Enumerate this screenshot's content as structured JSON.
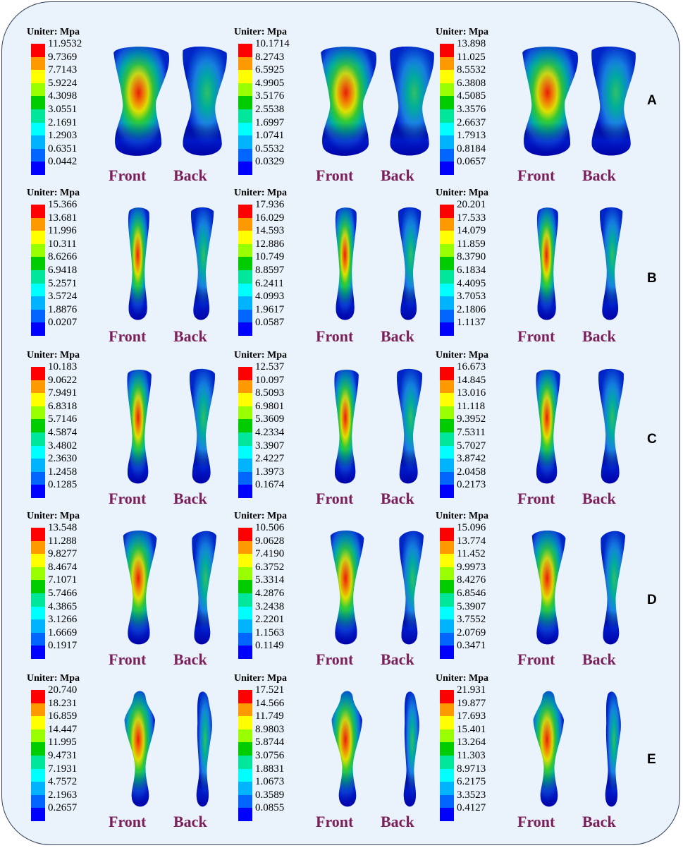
{
  "unit_label": "Uniter: Mpa",
  "front_label": "Front",
  "back_label": "Back",
  "legend_colors": [
    "#ff0000",
    "#ff9900",
    "#ffff00",
    "#99ff00",
    "#00cc00",
    "#00e69a",
    "#00ffff",
    "#00b3ff",
    "#0066ff",
    "#0000ff"
  ],
  "rows": [
    {
      "letter": "A",
      "panels": [
        {
          "scale": [
            "11.9532",
            "9.7369",
            "7.7143",
            "5.9224",
            "4.3098",
            "3.0551",
            "2.1691",
            "1.2903",
            "0.6351",
            "0.0442"
          ]
        },
        {
          "scale": [
            "10.1714",
            "8.2743",
            "6.5925",
            "4.9905",
            "3.5176",
            "2.5538",
            "1.6997",
            "1.0741",
            "0.5532",
            "0.0329"
          ]
        },
        {
          "scale": [
            "13.898",
            "11.025",
            "8.5532",
            "6.3808",
            "4.5085",
            "3.3576",
            "2.6637",
            "1.7913",
            "0.8184",
            "0.0657"
          ]
        }
      ]
    },
    {
      "letter": "B",
      "panels": [
        {
          "scale": [
            "15.366",
            "13.681",
            "11.996",
            "10.311",
            "8.6266",
            "6.9418",
            "5.2571",
            "3.5724",
            "1.8876",
            "0.0207"
          ]
        },
        {
          "scale": [
            "17.936",
            "16.029",
            "14.593",
            "12.886",
            "10.749",
            "8.8597",
            "6.2411",
            "4.0993",
            "1.9617",
            "0.0587"
          ]
        },
        {
          "scale": [
            "20.201",
            "17.533",
            "14.079",
            "11.859",
            "8.3790",
            "6.1834",
            "4.4095",
            "3.7053",
            "2.1806",
            "1.1137"
          ]
        }
      ]
    },
    {
      "letter": "C",
      "panels": [
        {
          "scale": [
            "10.183",
            "9.0622",
            "7.9491",
            "6.8318",
            "5.7146",
            "4.5874",
            "3.4802",
            "2.3630",
            "1.2458",
            "0.1285"
          ]
        },
        {
          "scale": [
            "12.537",
            "10.097",
            "8.5093",
            "6.9801",
            "5.3609",
            "4.2334",
            "3.3907",
            "2.4227",
            "1.3973",
            "0.1674"
          ]
        },
        {
          "scale": [
            "16.673",
            "14.845",
            "13.016",
            "11.118",
            "9.3952",
            "7.5311",
            "5.7027",
            "3.8742",
            "2.0458",
            "0.2173"
          ]
        }
      ]
    },
    {
      "letter": "D",
      "panels": [
        {
          "scale": [
            "13.548",
            "11.288",
            "9.8277",
            "8.4674",
            "7.1071",
            "5.7466",
            "4.3865",
            "3.1266",
            "1.6669",
            "0.1917"
          ]
        },
        {
          "scale": [
            "10.506",
            "9.0628",
            "7.4190",
            "6.3752",
            "5.3314",
            "4.2876",
            "3.2438",
            "2.2201",
            "1.1563",
            "0.1149"
          ]
        },
        {
          "scale": [
            "15.096",
            "13.774",
            "11.452",
            "9.9973",
            "8.4276",
            "6.8546",
            "5.3907",
            "3.7552",
            "2.0769",
            "0.3471"
          ]
        }
      ]
    },
    {
      "letter": "E",
      "panels": [
        {
          "scale": [
            "20.740",
            "18.231",
            "16.859",
            "14.447",
            "11.995",
            "9.4731",
            "7.1931",
            "4.7572",
            "2.1963",
            "0.2657"
          ]
        },
        {
          "scale": [
            "17.521",
            "14.566",
            "11.749",
            "8.9803",
            "5.8744",
            "3.0756",
            "1.8831",
            "1.0673",
            "0.3589",
            "0.0855"
          ]
        },
        {
          "scale": [
            "21.931",
            "19.877",
            "17.693",
            "15.401",
            "13.264",
            "11.303",
            "8.9713",
            "6.2175",
            "3.3523",
            "0.4127"
          ]
        }
      ]
    }
  ]
}
